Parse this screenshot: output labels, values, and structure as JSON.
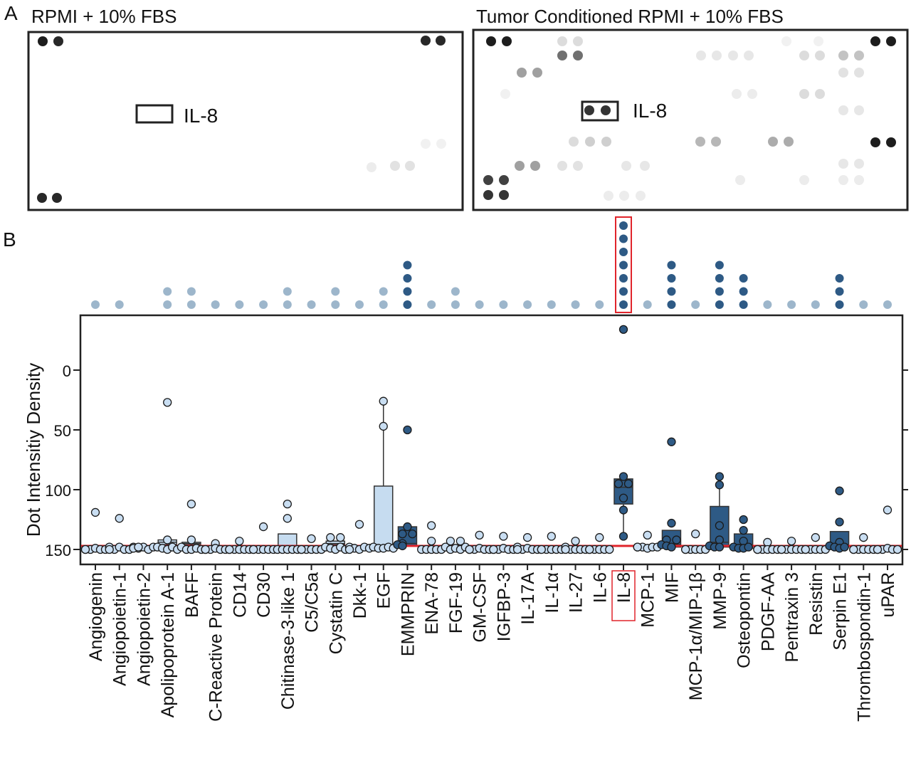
{
  "panel_a": {
    "label": "A",
    "left_title": "RPMI + 10% FBS",
    "right_title": "Tumor Conditioned RPMI + 10% FBS",
    "left_box_label": "IL-8",
    "right_box_label": "IL-8"
  },
  "chart_data": {
    "panel_label": "B",
    "type": "box-scatter",
    "ylabel": "Dot Intensitiy Density",
    "ylim": [
      -46,
      162
    ],
    "y_inverted": true,
    "yticks": [
      0,
      50,
      100,
      150
    ],
    "reference_line": 147,
    "grid": false,
    "highlighted_category": "IL-8",
    "colors": {
      "detected": "#2e5a85",
      "not_detected": "#c9def2",
      "reference_line": "#e0242b",
      "top_dot_light": "#9db6cb"
    },
    "categories": [
      {
        "name": "Angiogenin",
        "top_dots": 1,
        "detected": false,
        "points": [
          119,
          150,
          150,
          149,
          150,
          150,
          150
        ]
      },
      {
        "name": "Angiopoietin-1",
        "top_dots": 1,
        "detected": false,
        "points": [
          124,
          148,
          150,
          148,
          150,
          150,
          150
        ]
      },
      {
        "name": "Angiopoietin-2",
        "top_dots": 0,
        "detected": false,
        "points": [
          148,
          149,
          148,
          150,
          148,
          149,
          148
        ]
      },
      {
        "name": "Apolipoprotein A-1",
        "top_dots": 2,
        "detected": false,
        "box": [
          142,
          144,
          146
        ],
        "points": [
          27,
          142,
          148,
          149,
          150,
          148,
          150
        ]
      },
      {
        "name": "BAFF",
        "top_dots": 2,
        "detected": false,
        "box": [
          144,
          145,
          146
        ],
        "points": [
          112,
          142,
          148,
          150,
          150,
          149,
          150
        ]
      },
      {
        "name": "C-Reactive Protein",
        "top_dots": 1,
        "detected": false,
        "points": [
          145,
          150,
          150,
          149,
          150,
          150,
          150
        ]
      },
      {
        "name": "CD14",
        "top_dots": 1,
        "detected": false,
        "points": [
          143,
          150,
          150,
          150,
          150,
          150,
          150
        ]
      },
      {
        "name": "CD30",
        "top_dots": 1,
        "detected": false,
        "points": [
          131,
          150,
          150,
          150,
          150,
          150,
          150
        ]
      },
      {
        "name": "Chitinase-3-like 1",
        "top_dots": 2,
        "detected": false,
        "box": [
          137,
          148,
          149
        ],
        "points": [
          112,
          124,
          150,
          150,
          150,
          150,
          150
        ]
      },
      {
        "name": "C5/C5a",
        "top_dots": 1,
        "detected": false,
        "points": [
          141,
          150,
          150,
          150,
          150,
          150,
          150
        ]
      },
      {
        "name": "Cystatin C",
        "top_dots": 2,
        "detected": false,
        "box": [
          143,
          145,
          146
        ],
        "points": [
          140,
          140,
          148,
          149,
          150,
          148,
          150
        ]
      },
      {
        "name": "Dkk-1",
        "top_dots": 1,
        "detected": false,
        "points": [
          129,
          148,
          149,
          150,
          148,
          149,
          150
        ]
      },
      {
        "name": "EGF",
        "top_dots": 2,
        "detected": false,
        "box": [
          97,
          148,
          149
        ],
        "whisker": 26,
        "points": [
          26,
          47,
          148,
          149,
          149,
          148,
          149
        ]
      },
      {
        "name": "EMMPRIN",
        "top_dots": 4,
        "detected": true,
        "box": [
          131,
          145,
          147
        ],
        "points": [
          50,
          131,
          137,
          137,
          145,
          146,
          147
        ]
      },
      {
        "name": "ENA-78",
        "top_dots": 1,
        "detected": false,
        "points": [
          130,
          143,
          150,
          150,
          150,
          150,
          150
        ]
      },
      {
        "name": "FGF-19",
        "top_dots": 2,
        "detected": false,
        "points": [
          143,
          143,
          148,
          150,
          149,
          150,
          148
        ]
      },
      {
        "name": "GM-CSF",
        "top_dots": 1,
        "detected": false,
        "points": [
          138,
          150,
          150,
          149,
          150,
          150,
          150
        ]
      },
      {
        "name": "IGFBP-3",
        "top_dots": 1,
        "detected": false,
        "points": [
          139,
          150,
          150,
          149,
          150,
          150,
          150
        ]
      },
      {
        "name": "IL-17A",
        "top_dots": 1,
        "detected": false,
        "points": [
          140,
          148,
          150,
          149,
          150,
          150,
          150
        ]
      },
      {
        "name": "IL-1α",
        "top_dots": 1,
        "detected": false,
        "points": [
          139,
          150,
          150,
          150,
          150,
          150,
          150
        ]
      },
      {
        "name": "IL-27",
        "top_dots": 1,
        "detected": false,
        "points": [
          143,
          148,
          150,
          150,
          150,
          150,
          150
        ]
      },
      {
        "name": "IL-6",
        "top_dots": 1,
        "detected": false,
        "points": [
          140,
          150,
          150,
          150,
          150,
          150,
          150
        ]
      },
      {
        "name": "IL-8",
        "top_dots": 7,
        "detected": true,
        "box": [
          91,
          98,
          112
        ],
        "whisker_low": 139,
        "points": [
          -34,
          89,
          95,
          95,
          107,
          117,
          139
        ]
      },
      {
        "name": "MCP-1",
        "top_dots": 1,
        "detected": false,
        "points": [
          138,
          148,
          148,
          149,
          148,
          148,
          148
        ]
      },
      {
        "name": "MIF",
        "top_dots": 4,
        "detected": true,
        "box": [
          134,
          146,
          148
        ],
        "points": [
          60,
          128,
          142,
          142,
          146,
          147,
          148
        ]
      },
      {
        "name": "MCP-1α/MIP-1β",
        "top_dots": 1,
        "detected": false,
        "points": [
          137,
          150,
          150,
          150,
          150,
          150,
          150
        ]
      },
      {
        "name": "MMP-9",
        "top_dots": 4,
        "detected": true,
        "box": [
          114,
          144,
          148
        ],
        "whisker": 89,
        "points": [
          89,
          96,
          130,
          142,
          147,
          148,
          148
        ]
      },
      {
        "name": "Osteopontin",
        "top_dots": 3,
        "detected": true,
        "box": [
          137,
          147,
          149
        ],
        "points": [
          125,
          134,
          143,
          148,
          149,
          149,
          148
        ]
      },
      {
        "name": "PDGF-AA",
        "top_dots": 1,
        "detected": false,
        "points": [
          144,
          150,
          150,
          150,
          150,
          150,
          150
        ]
      },
      {
        "name": "Pentraxin 3",
        "top_dots": 1,
        "detected": false,
        "points": [
          143,
          150,
          150,
          150,
          150,
          150,
          150
        ]
      },
      {
        "name": "Resistin",
        "top_dots": 1,
        "detected": false,
        "points": [
          140,
          150,
          150,
          150,
          150,
          150,
          150
        ]
      },
      {
        "name": "Serpin E1",
        "top_dots": 3,
        "detected": true,
        "box": [
          135,
          146,
          148
        ],
        "points": [
          101,
          127,
          144,
          147,
          148,
          149,
          148
        ]
      },
      {
        "name": "Thrombospondin-1",
        "top_dots": 1,
        "detected": false,
        "points": [
          140,
          150,
          150,
          150,
          150,
          150,
          150
        ]
      },
      {
        "name": "uPAR",
        "top_dots": 1,
        "detected": false,
        "points": [
          117,
          150,
          150,
          149,
          150,
          150,
          150
        ]
      }
    ]
  }
}
